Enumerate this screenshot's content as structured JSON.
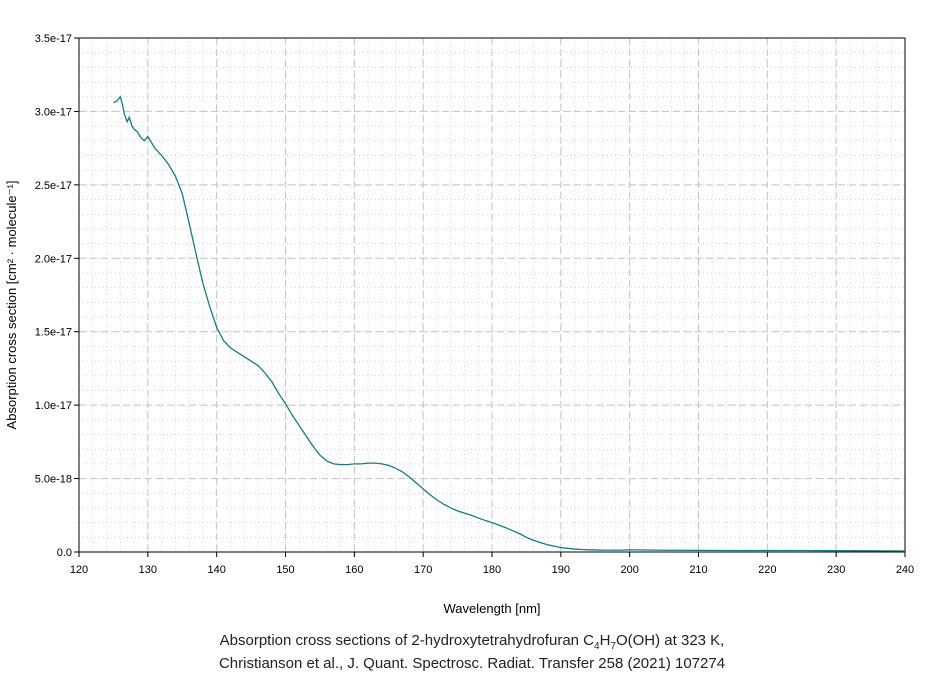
{
  "chart_data": {
    "type": "line",
    "xlabel": "Wavelength [nm]",
    "ylabel": "Absorption cross section [cm² · molecule⁻¹]",
    "xlim": [
      120,
      240
    ],
    "ylim": [
      0,
      3.5e-17
    ],
    "x_ticks": [
      120,
      130,
      140,
      150,
      160,
      170,
      180,
      190,
      200,
      210,
      220,
      230,
      240
    ],
    "x_tick_labels": [
      "120",
      "130",
      "140",
      "150",
      "160",
      "170",
      "180",
      "190",
      "200",
      "210",
      "220",
      "230",
      "240"
    ],
    "y_ticks": [
      0,
      5e-18,
      1e-17,
      1.5e-17,
      2e-17,
      2.5e-17,
      3e-17,
      3.5e-17
    ],
    "y_tick_labels": [
      "0.0",
      "5.0e-18",
      "1.0e-17",
      "1.5e-17",
      "2.0e-17",
      "2.5e-17",
      "3.0e-17",
      "3.5e-17"
    ],
    "grid": true,
    "line_color": "#1a7a80",
    "series": [
      {
        "x": [
          125,
          125.5,
          126,
          126.3,
          126.6,
          127,
          127.3,
          127.7,
          128,
          128.5,
          129,
          129.5,
          130,
          131,
          132,
          133,
          134,
          135,
          136,
          137,
          138,
          139,
          140,
          141,
          142,
          143,
          144,
          145,
          146,
          147,
          148,
          149,
          150,
          151,
          152,
          153,
          154,
          155,
          156,
          157,
          158,
          159,
          160,
          161,
          162,
          163,
          164,
          165,
          166,
          167,
          168,
          169,
          170,
          171,
          172,
          173,
          174,
          175,
          176,
          177,
          178,
          179,
          180,
          181,
          182,
          183,
          184,
          185,
          186,
          187,
          188,
          189,
          190,
          191,
          192,
          193,
          194,
          195,
          196,
          197,
          198,
          199,
          200,
          205,
          210,
          215,
          220,
          225,
          230,
          235,
          240
        ],
        "y": [
          3.06e-17,
          3.07e-17,
          3.1e-17,
          3.05e-17,
          2.98e-17,
          2.93e-17,
          2.96e-17,
          2.9e-17,
          2.88e-17,
          2.86e-17,
          2.82e-17,
          2.8e-17,
          2.83e-17,
          2.75e-17,
          2.7e-17,
          2.64e-17,
          2.56e-17,
          2.44e-17,
          2.24e-17,
          2.03e-17,
          1.83e-17,
          1.67e-17,
          1.53e-17,
          1.44e-17,
          1.39e-17,
          1.36e-17,
          1.33e-17,
          1.3e-17,
          1.27e-17,
          1.22e-17,
          1.16e-17,
          1.08e-17,
          1.01e-17,
          9.3e-18,
          8.6e-18,
          7.9e-18,
          7.2e-18,
          6.6e-18,
          6.2e-18,
          6e-18,
          5.95e-18,
          5.95e-18,
          6e-18,
          6e-18,
          6.05e-18,
          6.05e-18,
          6e-18,
          5.9e-18,
          5.7e-18,
          5.45e-18,
          5.1e-18,
          4.7e-18,
          4.3e-18,
          3.9e-18,
          3.55e-18,
          3.25e-18,
          3e-18,
          2.8e-18,
          2.65e-18,
          2.5e-18,
          2.32e-18,
          2.15e-18,
          2e-18,
          1.83e-18,
          1.65e-18,
          1.45e-18,
          1.25e-18,
          1e-18,
          8e-19,
          6.5e-19,
          5e-19,
          4e-19,
          3e-19,
          2.5e-19,
          2e-19,
          1.7e-19,
          1.5e-19,
          1.4e-19,
          1.3e-19,
          1.3e-19,
          1.3e-19,
          1.3e-19,
          1.5e-19,
          1.2e-19,
          1.1e-19,
          1e-19,
          1e-19,
          1e-19,
          9e-20,
          8e-20,
          7e-20
        ]
      }
    ]
  },
  "caption": {
    "line1_prefix": "Absorption cross sections of 2-hydroxytetrahydrofuran C",
    "sub1": "4",
    "mid1": "H",
    "sub2": "7",
    "line1_suffix": "O(OH) at 323 K,",
    "line2": "Christianson et al., J. Quant. Spectrosc. Radiat. Transfer 258 (2021) 107274"
  }
}
